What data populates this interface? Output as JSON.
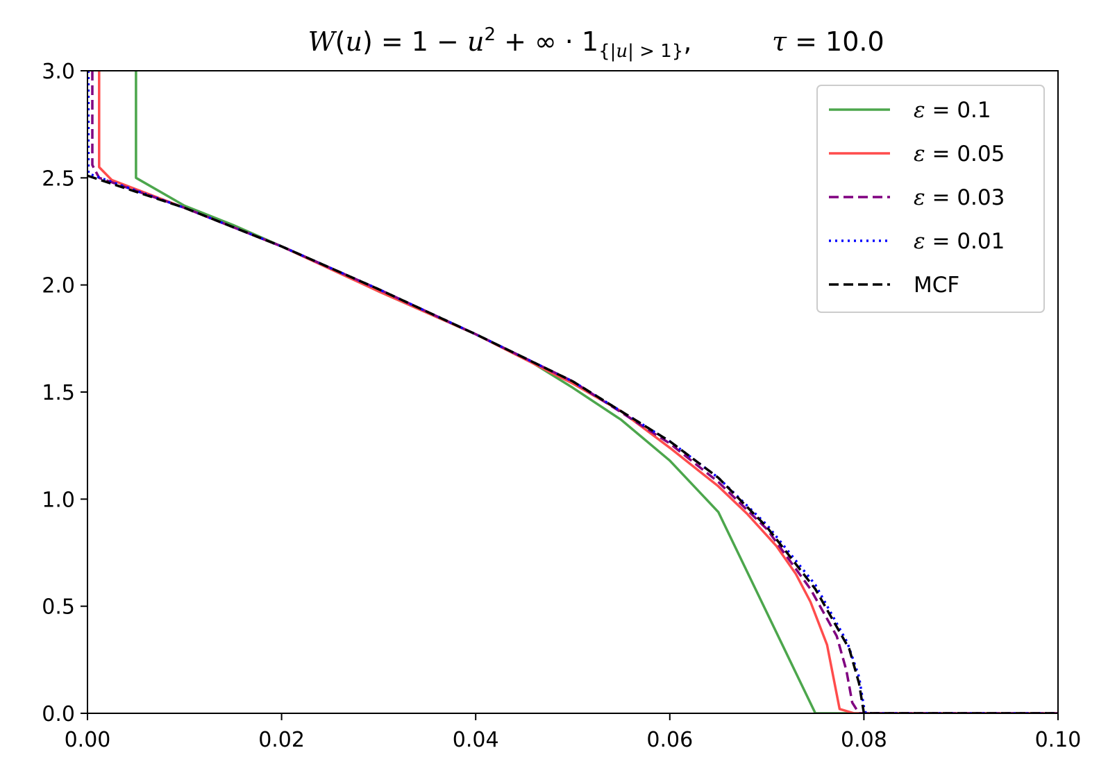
{
  "chart_data": {
    "type": "line",
    "title": {
      "parts": [
        "W",
        "(",
        "u",
        ") = 1 − ",
        "u",
        "2",
        " + ∞ · 1",
        "{|",
        "u",
        "| > 1}",
        ",",
        "τ",
        " = 10.0"
      ]
    },
    "xlabel": "",
    "ylabel": "",
    "xlim": [
      0.0,
      0.1
    ],
    "ylim": [
      0.0,
      3.0
    ],
    "xticks": [
      0.0,
      0.02,
      0.04,
      0.06,
      0.08,
      0.1
    ],
    "xtick_labels": [
      "0.00",
      "0.02",
      "0.04",
      "0.06",
      "0.08",
      "0.10"
    ],
    "yticks": [
      0.0,
      0.5,
      1.0,
      1.5,
      2.0,
      2.5,
      3.0
    ],
    "ytick_labels": [
      "0.0",
      "0.5",
      "1.0",
      "1.5",
      "2.0",
      "2.5",
      "3.0"
    ],
    "grid": false,
    "legend_position": "top-right",
    "series": [
      {
        "name": "ε = 0.1",
        "label_symbol": "ε",
        "label_value": " = 0.1",
        "color": "#4ca64c",
        "style": "solid",
        "points": [
          [
            0.005,
            3.0
          ],
          [
            0.005,
            2.5
          ],
          [
            0.01,
            2.37
          ],
          [
            0.015,
            2.28
          ],
          [
            0.02,
            2.18
          ],
          [
            0.025,
            2.08
          ],
          [
            0.03,
            1.97
          ],
          [
            0.035,
            1.87
          ],
          [
            0.04,
            1.77
          ],
          [
            0.045,
            1.66
          ],
          [
            0.05,
            1.52
          ],
          [
            0.055,
            1.37
          ],
          [
            0.06,
            1.18
          ],
          [
            0.065,
            0.94
          ],
          [
            0.07,
            0.47
          ],
          [
            0.075,
            0.0
          ],
          [
            0.1,
            0.0
          ]
        ]
      },
      {
        "name": "ε = 0.05",
        "label_symbol": "ε",
        "label_value": " = 0.05",
        "color": "#ff4c4c",
        "style": "solid",
        "points": [
          [
            0.0012,
            3.0
          ],
          [
            0.0012,
            2.55
          ],
          [
            0.0025,
            2.49
          ],
          [
            0.01,
            2.36
          ],
          [
            0.02,
            2.18
          ],
          [
            0.03,
            1.97
          ],
          [
            0.04,
            1.77
          ],
          [
            0.05,
            1.54
          ],
          [
            0.055,
            1.41
          ],
          [
            0.06,
            1.24
          ],
          [
            0.065,
            1.06
          ],
          [
            0.068,
            0.93
          ],
          [
            0.071,
            0.78
          ],
          [
            0.073,
            0.65
          ],
          [
            0.0745,
            0.52
          ],
          [
            0.0762,
            0.32
          ],
          [
            0.0775,
            0.02
          ],
          [
            0.079,
            0.0
          ],
          [
            0.1,
            0.0
          ]
        ]
      },
      {
        "name": "ε = 0.03",
        "label_symbol": "ε",
        "label_value": " = 0.03",
        "color": "#800080",
        "style": "dashed",
        "points": [
          [
            0.0005,
            3.0
          ],
          [
            0.0005,
            2.56
          ],
          [
            0.0012,
            2.5
          ],
          [
            0.01,
            2.36
          ],
          [
            0.02,
            2.18
          ],
          [
            0.03,
            1.98
          ],
          [
            0.04,
            1.77
          ],
          [
            0.05,
            1.55
          ],
          [
            0.06,
            1.26
          ],
          [
            0.065,
            1.08
          ],
          [
            0.07,
            0.86
          ],
          [
            0.0745,
            0.58
          ],
          [
            0.0772,
            0.36
          ],
          [
            0.0782,
            0.2
          ],
          [
            0.0788,
            0.05
          ],
          [
            0.0795,
            0.0
          ],
          [
            0.1,
            0.0
          ]
        ]
      },
      {
        "name": "ε = 0.01",
        "label_symbol": "ε",
        "label_value": " = 0.01",
        "color": "#0000ff",
        "style": "dotted",
        "points": [
          [
            0.0001,
            3.0
          ],
          [
            0.0001,
            2.52
          ],
          [
            0.01,
            2.36
          ],
          [
            0.02,
            2.18
          ],
          [
            0.03,
            1.98
          ],
          [
            0.04,
            1.77
          ],
          [
            0.05,
            1.55
          ],
          [
            0.06,
            1.27
          ],
          [
            0.065,
            1.1
          ],
          [
            0.07,
            0.88
          ],
          [
            0.075,
            0.6
          ],
          [
            0.0783,
            0.33
          ],
          [
            0.0795,
            0.17
          ],
          [
            0.08,
            0.03
          ],
          [
            0.0802,
            0.0
          ],
          [
            0.1,
            0.0
          ]
        ]
      },
      {
        "name": "MCF",
        "label_symbol": "",
        "label_value": "MCF",
        "color": "#000000",
        "style": "dashed",
        "points": [
          [
            0.0,
            2.51
          ],
          [
            0.01,
            2.36
          ],
          [
            0.02,
            2.18
          ],
          [
            0.03,
            1.98
          ],
          [
            0.04,
            1.77
          ],
          [
            0.05,
            1.55
          ],
          [
            0.06,
            1.27
          ],
          [
            0.065,
            1.1
          ],
          [
            0.07,
            0.87
          ],
          [
            0.075,
            0.58
          ],
          [
            0.0785,
            0.3
          ],
          [
            0.0795,
            0.14
          ],
          [
            0.08,
            0.0
          ],
          [
            0.1,
            0.0
          ]
        ]
      }
    ]
  }
}
